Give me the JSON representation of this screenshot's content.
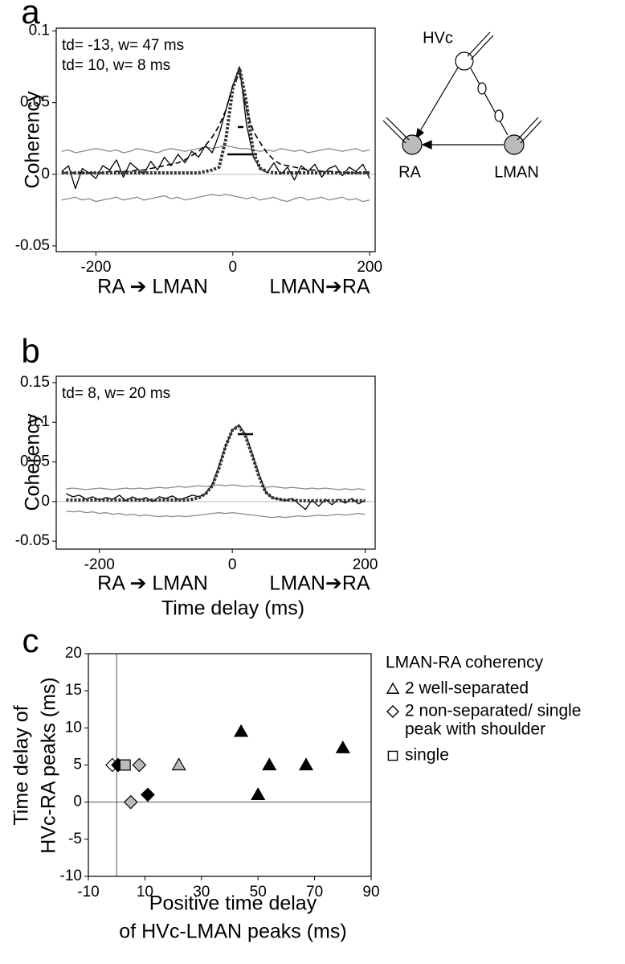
{
  "chart_data": [
    {
      "type": "line",
      "label": "a",
      "ylabel": "Coherency",
      "annotations": [
        "td= -13, w= 47 ms",
        "td= 10, w= 8 ms"
      ],
      "direction_labels": [
        "RA ➔ LMAN",
        "LMAN➔RA"
      ],
      "xlim": [
        -258,
        208
      ],
      "ylim": [
        -0.054,
        0.102
      ],
      "xticks": [
        -200,
        0,
        200
      ],
      "yticks": [
        -0.05,
        0,
        0.05,
        0.1
      ],
      "hlines": [
        0
      ],
      "x": [
        -250,
        -240,
        -230,
        -220,
        -210,
        -200,
        -190,
        -180,
        -170,
        -160,
        -150,
        -140,
        -130,
        -120,
        -110,
        -100,
        -90,
        -80,
        -70,
        -60,
        -50,
        -40,
        -30,
        -20,
        -10,
        0,
        10,
        20,
        30,
        40,
        50,
        60,
        70,
        80,
        90,
        100,
        110,
        120,
        130,
        140,
        150,
        160,
        170,
        180,
        190,
        200
      ],
      "series": [
        {
          "color": "#888888",
          "style": "solid",
          "values": [
            0.016,
            0.017,
            0.015,
            0.016,
            0.017,
            0.018,
            0.017,
            0.016,
            0.017,
            0.015,
            0.016,
            0.018,
            0.017,
            0.016,
            0.015,
            0.017,
            0.018,
            0.017,
            0.016,
            0.017,
            0.018,
            0.019,
            0.018,
            0.019,
            0.02,
            0.019,
            0.018,
            0.018,
            0.017,
            0.016,
            0.017,
            0.016,
            0.018,
            0.017,
            0.016,
            0.017,
            0.015,
            0.016,
            0.017,
            0.018,
            0.017,
            0.016,
            0.017,
            0.018,
            0.016,
            0.017
          ]
        },
        {
          "color": "#888888",
          "style": "solid",
          "values": [
            -0.018,
            -0.017,
            -0.016,
            -0.018,
            -0.017,
            -0.019,
            -0.018,
            -0.017,
            -0.016,
            -0.018,
            -0.017,
            -0.016,
            -0.018,
            -0.017,
            -0.016,
            -0.015,
            -0.017,
            -0.016,
            -0.018,
            -0.017,
            -0.016,
            -0.015,
            -0.014,
            -0.015,
            -0.014,
            -0.015,
            -0.016,
            -0.017,
            -0.016,
            -0.018,
            -0.017,
            -0.016,
            -0.018,
            -0.019,
            -0.017,
            -0.016,
            -0.018,
            -0.017,
            -0.016,
            -0.018,
            -0.017,
            -0.016,
            -0.018,
            -0.017,
            -0.019,
            -0.018
          ]
        },
        {
          "color": "#000000",
          "style": "solid",
          "values": [
            0.002,
            0.006,
            -0.01,
            0.004,
            0.001,
            -0.003,
            0.006,
            0.003,
            0.01,
            -0.002,
            0.008,
            0.004,
            0.0,
            0.009,
            0.003,
            0.012,
            0.006,
            0.014,
            0.008,
            0.016,
            0.012,
            0.02,
            0.015,
            0.028,
            0.045,
            0.062,
            0.075,
            0.035,
            0.012,
            0.004,
            0.001,
            0.008,
            0.0,
            0.005,
            -0.004,
            0.006,
            0.002,
            0.007,
            -0.002,
            0.004,
            0.006,
            -0.001,
            0.005,
            0.002,
            0.007,
            -0.003
          ]
        },
        {
          "color": "#000000",
          "style": "dashed",
          "values": [
            0.001,
            0.001,
            0.001,
            0.001,
            0.001,
            0.001,
            0.001,
            0.002,
            0.002,
            0.002,
            0.002,
            0.003,
            0.003,
            0.004,
            0.005,
            0.006,
            0.007,
            0.008,
            0.01,
            0.013,
            0.016,
            0.02,
            0.026,
            0.034,
            0.045,
            0.062,
            0.07,
            0.045,
            0.03,
            0.022,
            0.015,
            0.01,
            0.007,
            0.006,
            0.005,
            0.004,
            0.003,
            0.003,
            0.002,
            0.002,
            0.002,
            0.001,
            0.001,
            0.001,
            0.001,
            0.001
          ]
        },
        {
          "color": "#333333",
          "style": "dotted",
          "values": [
            0.001,
            0.001,
            0.001,
            0.001,
            0.001,
            0.001,
            0.001,
            0.001,
            0.001,
            0.001,
            0.001,
            0.001,
            0.001,
            0.001,
            0.001,
            0.001,
            0.001,
            0.001,
            0.001,
            0.001,
            0.001,
            0.002,
            0.003,
            0.005,
            0.025,
            0.06,
            0.074,
            0.05,
            0.015,
            0.004,
            0.002,
            0.001,
            0.001,
            0.001,
            0.001,
            0.001,
            0.001,
            0.001,
            0.001,
            0.001,
            0.001,
            0.001,
            0.001,
            0.001,
            0.001,
            0.001
          ]
        }
      ]
    },
    {
      "type": "line",
      "label": "b",
      "ylabel": "Coherency",
      "xlabel": "Time delay (ms)",
      "annotations": [
        "td= 8, w= 20 ms"
      ],
      "direction_labels": [
        "RA ➔ LMAN",
        "LMAN➔RA"
      ],
      "xlim": [
        -265,
        215
      ],
      "ylim": [
        -0.06,
        0.158
      ],
      "xticks": [
        -200,
        0,
        200
      ],
      "yticks": [
        -0.05,
        0,
        0.05,
        0.1,
        0.15
      ],
      "hlines": [
        0
      ],
      "x": [
        -250,
        -240,
        -230,
        -220,
        -210,
        -200,
        -190,
        -180,
        -170,
        -160,
        -150,
        -140,
        -130,
        -120,
        -110,
        -100,
        -90,
        -80,
        -70,
        -60,
        -50,
        -40,
        -30,
        -20,
        -10,
        0,
        10,
        20,
        30,
        40,
        50,
        60,
        70,
        80,
        90,
        100,
        110,
        120,
        130,
        140,
        150,
        160,
        170,
        180,
        190,
        200
      ],
      "series": [
        {
          "color": "#888888",
          "style": "solid",
          "values": [
            0.016,
            0.017,
            0.016,
            0.015,
            0.016,
            0.017,
            0.016,
            0.015,
            0.016,
            0.017,
            0.016,
            0.017,
            0.016,
            0.017,
            0.018,
            0.017,
            0.018,
            0.019,
            0.018,
            0.019,
            0.02,
            0.019,
            0.02,
            0.021,
            0.02,
            0.021,
            0.02,
            0.019,
            0.02,
            0.019,
            0.018,
            0.019,
            0.018,
            0.017,
            0.018,
            0.017,
            0.016,
            0.017,
            0.016,
            0.017,
            0.016,
            0.015,
            0.016,
            0.015,
            0.016,
            0.015
          ]
        },
        {
          "color": "#888888",
          "style": "solid",
          "values": [
            -0.012,
            -0.013,
            -0.012,
            -0.014,
            -0.013,
            -0.015,
            -0.014,
            -0.016,
            -0.015,
            -0.017,
            -0.016,
            -0.018,
            -0.017,
            -0.018,
            -0.019,
            -0.018,
            -0.019,
            -0.018,
            -0.019,
            -0.018,
            -0.017,
            -0.016,
            -0.015,
            -0.014,
            -0.015,
            -0.014,
            -0.015,
            -0.016,
            -0.017,
            -0.018,
            -0.019,
            -0.02,
            -0.019,
            -0.02,
            -0.019,
            -0.018,
            -0.019,
            -0.018,
            -0.017,
            -0.018,
            -0.017,
            -0.016,
            -0.017,
            -0.016,
            -0.015,
            -0.016
          ]
        },
        {
          "color": "#000000",
          "style": "solid",
          "values": [
            0.01,
            0.006,
            0.008,
            0.003,
            0.006,
            0.002,
            0.005,
            0.003,
            0.008,
            0.001,
            0.006,
            0.002,
            0.005,
            0.0,
            0.006,
            0.004,
            0.007,
            0.002,
            0.005,
            0.008,
            0.006,
            0.01,
            0.022,
            0.045,
            0.07,
            0.09,
            0.097,
            0.085,
            0.06,
            0.035,
            0.012,
            0.005,
            0.003,
            0.001,
            0.004,
            -0.003,
            -0.01,
            0.002,
            -0.006,
            0.003,
            -0.004,
            0.003,
            -0.002,
            0.004,
            -0.003,
            0.002
          ]
        },
        {
          "color": "#333333",
          "style": "dotted",
          "values": [
            0.002,
            0.002,
            0.002,
            0.002,
            0.002,
            0.002,
            0.002,
            0.002,
            0.002,
            0.002,
            0.002,
            0.002,
            0.002,
            0.002,
            0.002,
            0.002,
            0.002,
            0.002,
            0.002,
            0.003,
            0.005,
            0.01,
            0.02,
            0.042,
            0.07,
            0.09,
            0.095,
            0.082,
            0.058,
            0.032,
            0.012,
            0.005,
            0.003,
            0.002,
            0.002,
            0.001,
            0.001,
            0.001,
            0.001,
            0.001,
            0.001,
            0.001,
            0.001,
            0.001,
            0.001,
            0.001
          ]
        }
      ]
    },
    {
      "type": "scatter",
      "label": "c",
      "ylabel": [
        "Time delay of",
        "HVc-RA peaks (ms)"
      ],
      "xlabel": [
        "Positive time delay",
        "of HVc-LMAN peaks (ms)"
      ],
      "legend_title": "LMAN-RA coherency",
      "legend": [
        {
          "marker": "triangle",
          "label": [
            "2 well-separated"
          ]
        },
        {
          "marker": "diamond",
          "label": [
            "2 non-separated/ single",
            "peak with shoulder"
          ]
        },
        {
          "marker": "square",
          "label": [
            "single"
          ]
        }
      ],
      "xlim": [
        -10,
        90
      ],
      "ylim": [
        -10,
        20
      ],
      "xticks": [
        -10,
        10,
        30,
        50,
        70,
        90
      ],
      "yticks": [
        -10,
        -5,
        0,
        5,
        10,
        15,
        20
      ],
      "hlines": [
        0
      ],
      "vlines": [
        0
      ],
      "series": [
        {
          "marker": "triangle",
          "color": "#000000",
          "x": [
            44,
            50,
            54,
            67,
            80
          ],
          "values": [
            9.5,
            1,
            5,
            5,
            7.3
          ]
        },
        {
          "marker": "triangle",
          "color": "#bbbbbb",
          "x": [
            22
          ],
          "values": [
            5
          ]
        },
        {
          "marker": "diamond",
          "color": "#ffffff",
          "x": [
            -1.5
          ],
          "values": [
            5
          ]
        },
        {
          "marker": "diamond",
          "color": "#000000",
          "x": [
            0.5,
            11
          ],
          "values": [
            5,
            1
          ]
        },
        {
          "marker": "diamond",
          "color": "#bbbbbb",
          "x": [
            8,
            5
          ],
          "values": [
            5,
            0
          ]
        },
        {
          "marker": "square",
          "color": "#bbbbbb",
          "x": [
            3
          ],
          "values": [
            5
          ]
        }
      ]
    }
  ],
  "diagram": {
    "nodes": [
      "HVc",
      "RA",
      "LMAN"
    ]
  }
}
